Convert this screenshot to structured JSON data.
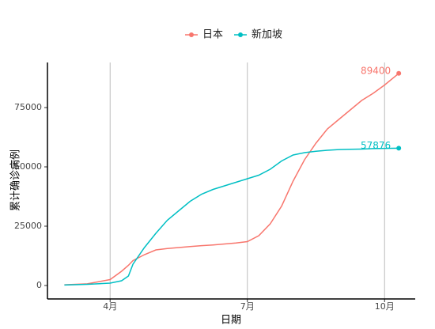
{
  "chart_data": {
    "type": "line",
    "x_label": "日期",
    "y_label": "累计确诊病例",
    "x": [
      3.0,
      3.5,
      4.0,
      4.25,
      4.4,
      4.5,
      4.75,
      5.0,
      5.25,
      5.5,
      5.75,
      6.0,
      6.25,
      6.5,
      6.75,
      7.0,
      7.25,
      7.5,
      7.75,
      8.0,
      8.25,
      8.5,
      8.75,
      9.0,
      9.25,
      9.5,
      9.75,
      10.0,
      10.31
    ],
    "series": [
      {
        "name": "日本",
        "color": "#F8766D",
        "values": [
          300,
          700,
          2500,
          6000,
          8500,
          10500,
          13000,
          15000,
          15600,
          16000,
          16400,
          16800,
          17100,
          17500,
          17900,
          18500,
          21000,
          26000,
          33500,
          44000,
          53000,
          60000,
          66000,
          70000,
          74000,
          78000,
          81000,
          84500,
          89400
        ]
      },
      {
        "name": "新加坡",
        "color": "#00BFC4",
        "values": [
          200,
          500,
          1000,
          2000,
          4000,
          9000,
          16000,
          22000,
          27500,
          31500,
          35500,
          38500,
          40500,
          42000,
          43500,
          45000,
          46500,
          49000,
          52500,
          55000,
          56000,
          56600,
          57000,
          57300,
          57400,
          57500,
          57700,
          57800,
          57876
        ]
      }
    ],
    "xlim": [
      2.63,
      10.67
    ],
    "ylim": [
      -5667,
      94000
    ],
    "xticks": [
      {
        "value": 4,
        "label": "4月"
      },
      {
        "value": 7,
        "label": "7月"
      },
      {
        "value": 10,
        "label": "10月"
      }
    ],
    "yticks": [
      0,
      25000,
      50000,
      75000
    ],
    "grid": "x",
    "legend": "top"
  }
}
